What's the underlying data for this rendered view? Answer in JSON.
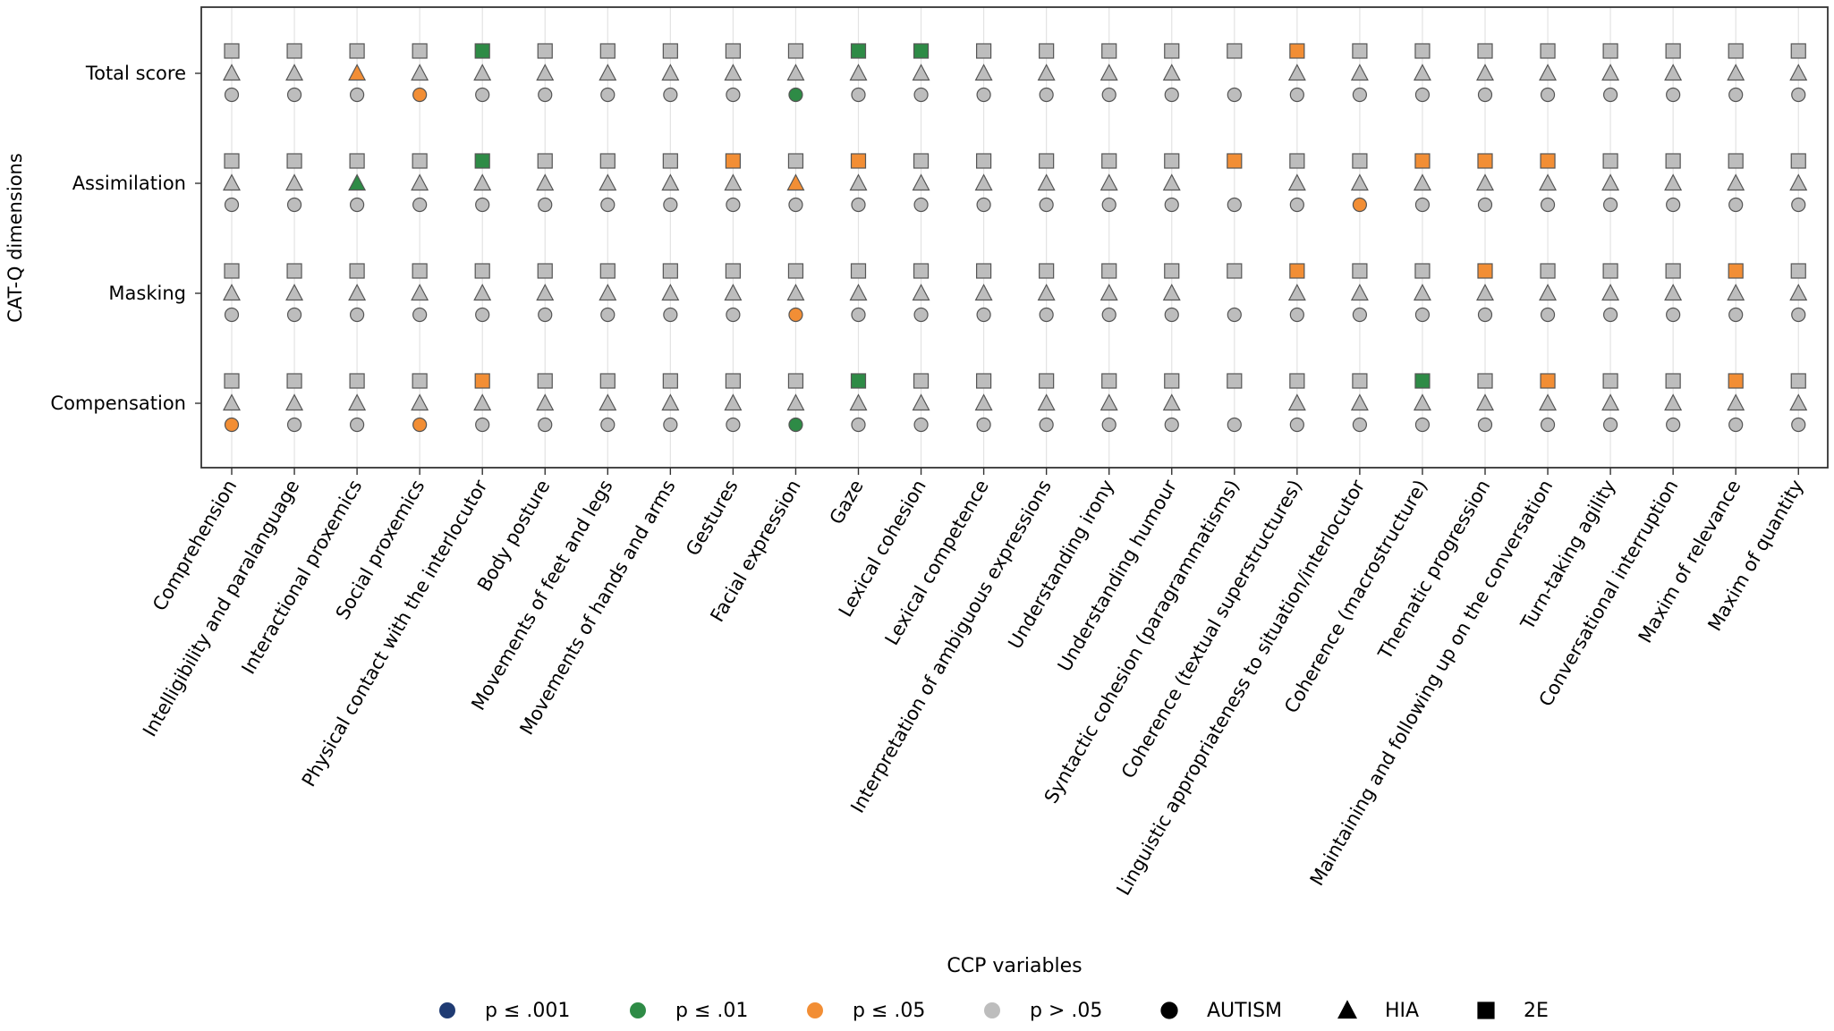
{
  "chart_data": {
    "type": "scatter",
    "title": "",
    "xlabel": "CCP variables",
    "ylabel": "CAT-Q dimensions",
    "grid": "vertical",
    "categories": [
      "Comprehension",
      "Intelligibility and paralanguage",
      "Interactional proxemics",
      "Social proxemics",
      "Physical contact with the interlocutor",
      "Body posture",
      "Movements of feet and legs",
      "Movements of hands and arms",
      "Gestures",
      "Facial expression",
      "Gaze",
      "Lexical cohesion",
      "Lexical competence",
      "Interpretation of ambiguous expressions",
      "Understanding irony",
      "Understanding humour",
      "Syntactic cohesion (paragrammatisms)",
      "Coherence (textual superstructures)",
      "Linguistic appropriateness to situation/interlocutor",
      "Coherence (macrostructure)",
      "Thematic progression",
      "Maintaining and following up on the conversation",
      "Turn-taking agility",
      "Conversational interruption",
      "Maxim of relevance",
      "Maxim of quantity"
    ],
    "dimensions": [
      "Total score",
      "Assimilation",
      "Masking",
      "Compensation"
    ],
    "groups": [
      {
        "name": "2E",
        "marker": "square"
      },
      {
        "name": "HIA",
        "marker": "triangle"
      },
      {
        "name": "AUTISM",
        "marker": "circle"
      }
    ],
    "significance_levels": [
      {
        "code": "p001",
        "label": "p ≤ .001",
        "color": "#1f3b73"
      },
      {
        "code": "p01",
        "label": "p ≤ .01",
        "color": "#2e8b46"
      },
      {
        "code": "p05",
        "label": "p ≤ .05",
        "color": "#f28e35"
      },
      {
        "code": "ns",
        "label": "p > .05",
        "color": "#bdbdbd"
      }
    ],
    "default_level": "ns",
    "missing": [
      {
        "dimension": "Total score",
        "group": "HIA",
        "category": "Syntactic cohesion (paragrammatisms)"
      },
      {
        "dimension": "Assimilation",
        "group": "HIA",
        "category": "Syntactic cohesion (paragrammatisms)"
      },
      {
        "dimension": "Masking",
        "group": "HIA",
        "category": "Syntactic cohesion (paragrammatisms)"
      },
      {
        "dimension": "Compensation",
        "group": "HIA",
        "category": "Syntactic cohesion (paragrammatisms)"
      }
    ],
    "significant_points": [
      {
        "dimension": "Total score",
        "group": "2E",
        "category": "Physical contact with the interlocutor",
        "level": "p01"
      },
      {
        "dimension": "Total score",
        "group": "2E",
        "category": "Gaze",
        "level": "p01"
      },
      {
        "dimension": "Total score",
        "group": "2E",
        "category": "Lexical cohesion",
        "level": "p01"
      },
      {
        "dimension": "Total score",
        "group": "2E",
        "category": "Coherence (textual superstructures)",
        "level": "p05"
      },
      {
        "dimension": "Total score",
        "group": "HIA",
        "category": "Interactional proxemics",
        "level": "p05"
      },
      {
        "dimension": "Total score",
        "group": "AUTISM",
        "category": "Social proxemics",
        "level": "p05"
      },
      {
        "dimension": "Total score",
        "group": "AUTISM",
        "category": "Facial expression",
        "level": "p01"
      },
      {
        "dimension": "Assimilation",
        "group": "2E",
        "category": "Physical contact with the interlocutor",
        "level": "p01"
      },
      {
        "dimension": "Assimilation",
        "group": "2E",
        "category": "Gestures",
        "level": "p05"
      },
      {
        "dimension": "Assimilation",
        "group": "2E",
        "category": "Gaze",
        "level": "p05"
      },
      {
        "dimension": "Assimilation",
        "group": "2E",
        "category": "Syntactic cohesion (paragrammatisms)",
        "level": "p05"
      },
      {
        "dimension": "Assimilation",
        "group": "2E",
        "category": "Coherence (macrostructure)",
        "level": "p05"
      },
      {
        "dimension": "Assimilation",
        "group": "2E",
        "category": "Thematic progression",
        "level": "p05"
      },
      {
        "dimension": "Assimilation",
        "group": "2E",
        "category": "Maintaining and following up on the conversation",
        "level": "p05"
      },
      {
        "dimension": "Assimilation",
        "group": "HIA",
        "category": "Interactional proxemics",
        "level": "p01"
      },
      {
        "dimension": "Assimilation",
        "group": "HIA",
        "category": "Facial expression",
        "level": "p05"
      },
      {
        "dimension": "Assimilation",
        "group": "AUTISM",
        "category": "Linguistic appropriateness to situation/interlocutor",
        "level": "p05"
      },
      {
        "dimension": "Masking",
        "group": "2E",
        "category": "Coherence (textual superstructures)",
        "level": "p05"
      },
      {
        "dimension": "Masking",
        "group": "2E",
        "category": "Thematic progression",
        "level": "p05"
      },
      {
        "dimension": "Masking",
        "group": "2E",
        "category": "Maxim of relevance",
        "level": "p05"
      },
      {
        "dimension": "Masking",
        "group": "AUTISM",
        "category": "Facial expression",
        "level": "p05"
      },
      {
        "dimension": "Compensation",
        "group": "2E",
        "category": "Physical contact with the interlocutor",
        "level": "p05"
      },
      {
        "dimension": "Compensation",
        "group": "2E",
        "category": "Gaze",
        "level": "p01"
      },
      {
        "dimension": "Compensation",
        "group": "2E",
        "category": "Coherence (macrostructure)",
        "level": "p01"
      },
      {
        "dimension": "Compensation",
        "group": "2E",
        "category": "Maintaining and following up on the conversation",
        "level": "p05"
      },
      {
        "dimension": "Compensation",
        "group": "2E",
        "category": "Maxim of relevance",
        "level": "p05"
      },
      {
        "dimension": "Compensation",
        "group": "AUTISM",
        "category": "Comprehension",
        "level": "p05"
      },
      {
        "dimension": "Compensation",
        "group": "AUTISM",
        "category": "Social proxemics",
        "level": "p05"
      },
      {
        "dimension": "Compensation",
        "group": "AUTISM",
        "category": "Facial expression",
        "level": "p01"
      }
    ],
    "legend": {
      "placement": "bottom-center",
      "entries": [
        {
          "type": "level",
          "label": "p ≤ .001",
          "color": "#1f3b73"
        },
        {
          "type": "level",
          "label": "p ≤ .01",
          "color": "#2e8b46"
        },
        {
          "type": "level",
          "label": "p ≤ .05",
          "color": "#f28e35"
        },
        {
          "type": "level",
          "label": "p > .05",
          "color": "#bdbdbd"
        },
        {
          "type": "shape",
          "label": "AUTISM",
          "marker": "circle"
        },
        {
          "type": "shape",
          "label": "HIA",
          "marker": "triangle"
        },
        {
          "type": "shape",
          "label": "2E",
          "marker": "square"
        }
      ]
    }
  }
}
